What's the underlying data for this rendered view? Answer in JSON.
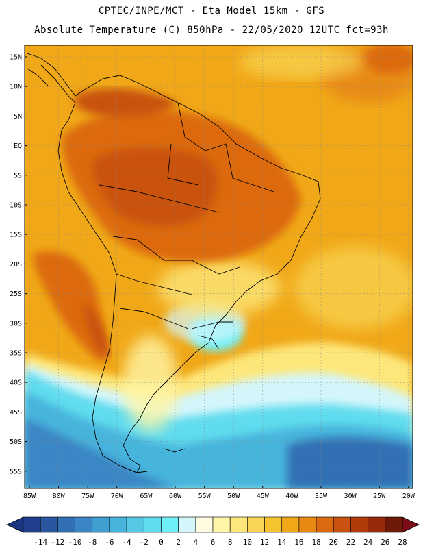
{
  "header": {
    "line1": "CPTEC/INPE/MCT  -   Eta Model 15km - GFS",
    "line2": "Absolute Temperature (C) 850hPa - 22/05/2020 12UTC fct=93h"
  },
  "axes": {
    "lat_labels": [
      "15N",
      "10N",
      "5N",
      "EQ",
      "5S",
      "10S",
      "15S",
      "20S",
      "25S",
      "30S",
      "35S",
      "40S",
      "45S",
      "50S",
      "55S"
    ],
    "lon_labels": [
      "85W",
      "80W",
      "75W",
      "70W",
      "65W",
      "60W",
      "55W",
      "50W",
      "45W",
      "40W",
      "35W",
      "30W",
      "25W",
      "20W"
    ]
  },
  "colorbar": {
    "labels": [
      "-14",
      "-12",
      "-10",
      "-8",
      "-6",
      "-4",
      "-2",
      "0",
      "2",
      "4",
      "6",
      "8",
      "10",
      "12",
      "14",
      "16",
      "18",
      "20",
      "22",
      "24",
      "26",
      "28"
    ],
    "colors": [
      "#1f3f8c",
      "#2a56a0",
      "#3270b4",
      "#3a86c4",
      "#3f9fd0",
      "#46b4dc",
      "#55c8e4",
      "#60dcee",
      "#6ff0f6",
      "#d4f6fb",
      "#fffbe0",
      "#fff6a8",
      "#fde77a",
      "#f9d655",
      "#f5c430",
      "#f0a818",
      "#e88a12",
      "#dc6a10",
      "#c9520e",
      "#b03c0c",
      "#962a0a",
      "#6e1a08"
    ],
    "under_color": "#1a3580",
    "over_color": "#7a0b17"
  }
}
